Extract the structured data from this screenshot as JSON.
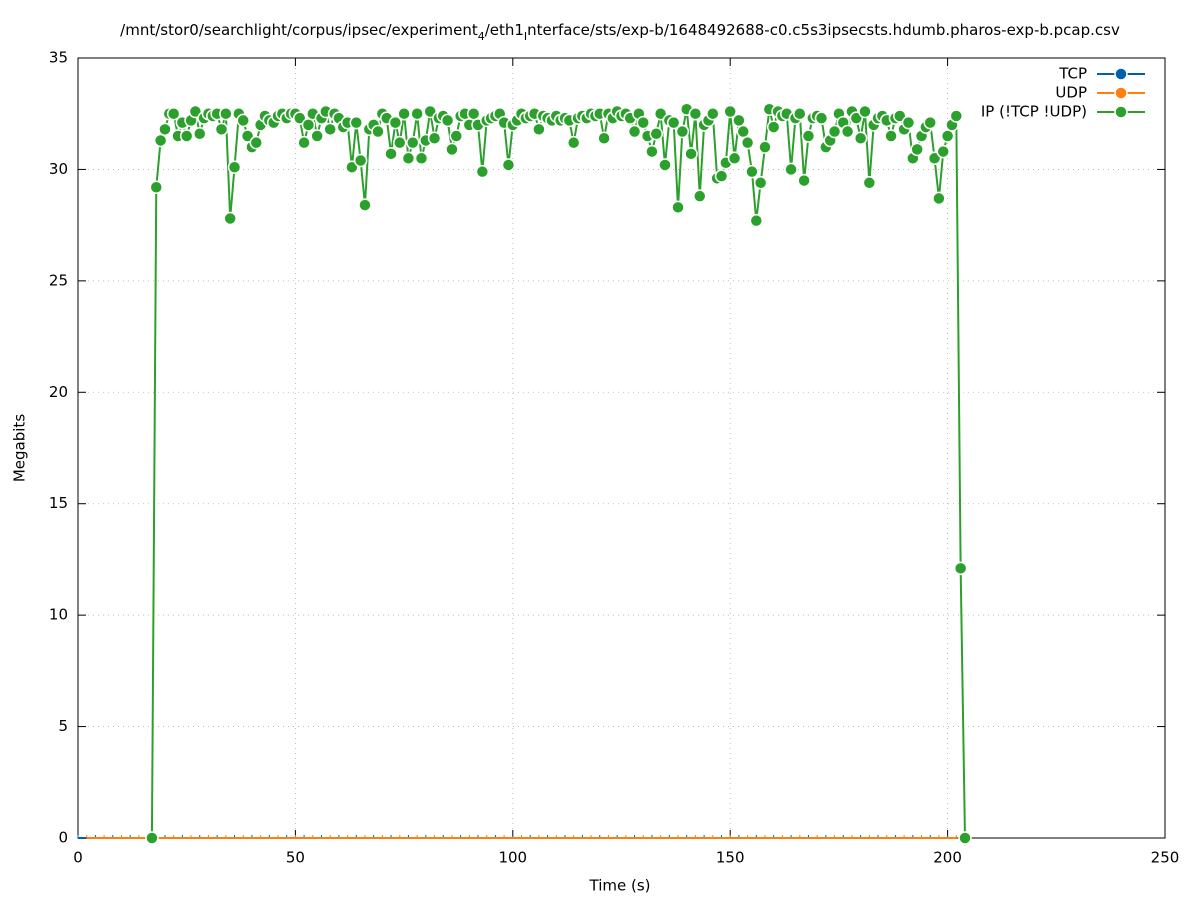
{
  "chart_data": {
    "type": "line",
    "title": [
      "/mnt/stor0/searchlight/corpus/ipsec/experiment",
      "4",
      "/eth1",
      "I",
      "nterface/sts/exp-b/1648492688-c0.c5s3ipsecsts.hdumb.pharos-exp-b.pcap.csv"
    ],
    "xlabel": "Time (s)",
    "ylabel": "Megabits",
    "xlim": [
      0,
      250
    ],
    "xticks": [
      0,
      50,
      100,
      150,
      200,
      250
    ],
    "ylim": [
      0,
      35
    ],
    "yticks": [
      0,
      5,
      10,
      15,
      20,
      25,
      30,
      35
    ],
    "grid": true,
    "legend": "top-right",
    "series": [
      {
        "name": "TCP",
        "color": "#0060ad",
        "x": [
          0,
          4,
          8,
          12,
          16,
          20,
          24,
          28,
          32,
          36,
          40,
          44,
          48,
          52,
          56,
          60,
          64,
          68,
          72,
          76,
          80,
          84,
          88,
          92,
          96,
          100,
          104,
          108,
          112,
          116,
          120,
          124,
          128,
          132,
          136,
          140,
          144,
          148,
          152,
          156,
          160,
          164,
          168,
          172,
          176,
          180,
          184,
          188,
          192,
          196,
          200
        ],
        "values": [
          0,
          0,
          0,
          0,
          0,
          0,
          0,
          0,
          0,
          0,
          0,
          0,
          0,
          0,
          0,
          0,
          0,
          0,
          0,
          0,
          0,
          0,
          0,
          0,
          0,
          0,
          0,
          0,
          0,
          0,
          0,
          0,
          0,
          0,
          0,
          0,
          0,
          0,
          0,
          0,
          0,
          0,
          0,
          0,
          0,
          0,
          0,
          0,
          0,
          0,
          0
        ]
      },
      {
        "name": "UDP",
        "color": "#ff7f0e",
        "x": [
          2,
          6,
          10,
          14,
          18,
          22,
          26,
          30,
          34,
          38,
          42,
          46,
          50,
          54,
          58,
          62,
          66,
          70,
          74,
          78,
          82,
          86,
          90,
          94,
          98,
          102,
          106,
          110,
          114,
          118,
          122,
          126,
          130,
          134,
          138,
          142,
          146,
          150,
          154,
          158,
          162,
          166,
          170,
          174,
          178,
          182,
          186,
          190,
          194,
          198,
          202
        ],
        "values": [
          0,
          0,
          0,
          0,
          0,
          0,
          0,
          0,
          0,
          0,
          0,
          0,
          0,
          0,
          0,
          0,
          0,
          0,
          0,
          0,
          0,
          0,
          0,
          0,
          0,
          0,
          0,
          0,
          0,
          0,
          0,
          0,
          0,
          0,
          0,
          0,
          0,
          0,
          0,
          0,
          0,
          0,
          0,
          0,
          0,
          0,
          0,
          0,
          0,
          0,
          0
        ]
      },
      {
        "name": "IP (!TCP  !UDP)",
        "color": "#2ca02c",
        "x": [
          17,
          18,
          19,
          20,
          21,
          22,
          23,
          24,
          25,
          26,
          27,
          28,
          29,
          30,
          31,
          32,
          33,
          34,
          35,
          36,
          37,
          38,
          39,
          40,
          41,
          42,
          43,
          44,
          45,
          46,
          47,
          48,
          49,
          50,
          51,
          52,
          53,
          54,
          55,
          56,
          57,
          58,
          59,
          60,
          61,
          62,
          63,
          64,
          65,
          66,
          67,
          68,
          69,
          70,
          71,
          72,
          73,
          74,
          75,
          76,
          77,
          78,
          79,
          80,
          81,
          82,
          83,
          84,
          85,
          86,
          87,
          88,
          89,
          90,
          91,
          92,
          93,
          94,
          95,
          96,
          97,
          98,
          99,
          100,
          101,
          102,
          103,
          104,
          105,
          106,
          107,
          108,
          109,
          110,
          111,
          112,
          113,
          114,
          115,
          116,
          117,
          118,
          119,
          120,
          121,
          122,
          123,
          124,
          125,
          126,
          127,
          128,
          129,
          130,
          131,
          132,
          133,
          134,
          135,
          136,
          137,
          138,
          139,
          140,
          141,
          142,
          143,
          144,
          145,
          146,
          147,
          148,
          149,
          150,
          151,
          152,
          153,
          154,
          155,
          156,
          157,
          158,
          159,
          160,
          161,
          162,
          163,
          164,
          165,
          166,
          167,
          168,
          169,
          170,
          171,
          172,
          173,
          174,
          175,
          176,
          177,
          178,
          179,
          180,
          181,
          182,
          183,
          184,
          185,
          186,
          187,
          188,
          189,
          190,
          191,
          192,
          193,
          194,
          195,
          196,
          197,
          198,
          199,
          200,
          201,
          202,
          203,
          204
        ],
        "values": [
          0,
          29.2,
          31.3,
          31.8,
          32.5,
          32.5,
          31.5,
          32.1,
          31.5,
          32.2,
          32.6,
          31.6,
          32.3,
          32.5,
          32.4,
          32.5,
          31.8,
          32.5,
          27.8,
          30.1,
          32.5,
          32.2,
          31.5,
          31.0,
          31.2,
          32.0,
          32.4,
          32.2,
          32.1,
          32.4,
          32.5,
          32.3,
          32.5,
          32.5,
          32.3,
          31.2,
          32.0,
          32.5,
          31.5,
          32.3,
          32.6,
          31.8,
          32.5,
          32.3,
          31.9,
          32.1,
          30.1,
          32.1,
          30.4,
          28.4,
          31.8,
          32.0,
          31.7,
          32.5,
          32.3,
          30.7,
          32.1,
          31.2,
          32.5,
          30.5,
          31.2,
          32.5,
          30.5,
          31.3,
          32.6,
          31.4,
          32.3,
          32.4,
          32.2,
          30.9,
          31.5,
          32.4,
          32.5,
          32.0,
          32.5,
          32.0,
          29.9,
          32.2,
          32.3,
          32.4,
          32.5,
          32.1,
          30.2,
          32.0,
          32.2,
          32.5,
          32.3,
          32.4,
          32.5,
          31.8,
          32.4,
          32.3,
          32.2,
          32.4,
          32.2,
          32.3,
          32.2,
          31.2,
          32.3,
          32.4,
          32.3,
          32.5,
          32.4,
          32.5,
          31.4,
          32.5,
          32.3,
          32.6,
          32.4,
          32.5,
          32.3,
          31.7,
          32.5,
          32.1,
          31.5,
          30.8,
          31.6,
          32.5,
          30.2,
          32.2,
          32.1,
          28.3,
          31.7,
          32.7,
          30.7,
          32.5,
          28.8,
          32.0,
          32.2,
          32.5,
          29.6,
          29.7,
          30.3,
          32.6,
          30.5,
          32.2,
          31.7,
          31.2,
          29.9,
          27.7,
          29.4,
          31.0,
          32.7,
          31.9,
          32.6,
          32.4,
          32.5,
          30.0,
          32.3,
          32.5,
          29.5,
          31.5,
          32.3,
          32.4,
          32.3,
          31.0,
          31.3,
          31.7,
          32.5,
          32.1,
          31.7,
          32.6,
          32.3,
          31.4,
          32.6,
          29.4,
          32.0,
          32.3,
          32.4,
          32.2,
          31.5,
          32.3,
          32.4,
          31.8,
          32.1,
          30.5,
          30.9,
          31.5,
          31.9,
          32.1,
          30.5,
          28.7,
          30.8,
          31.5,
          32.0,
          32.4,
          12.1,
          0
        ]
      }
    ]
  }
}
